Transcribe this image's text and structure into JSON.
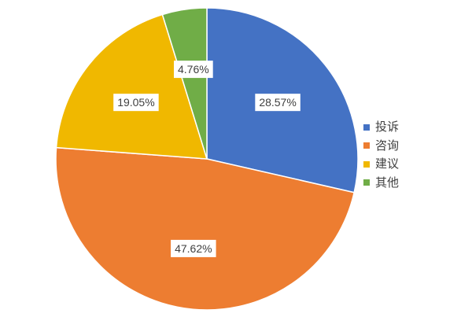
{
  "chart_data": {
    "type": "pie",
    "categories": [
      "投诉",
      "咨询",
      "建议",
      "其他"
    ],
    "values": [
      28.57,
      47.62,
      19.05,
      4.76
    ],
    "labels": [
      "28.57%",
      "47.62%",
      "19.05%",
      "4.76%"
    ],
    "colors": [
      "#4472C4",
      "#ED7D31",
      "#F0B800",
      "#70AD47"
    ],
    "title": "",
    "legend_position": "right",
    "start_angle": "top",
    "direction": "clockwise"
  }
}
